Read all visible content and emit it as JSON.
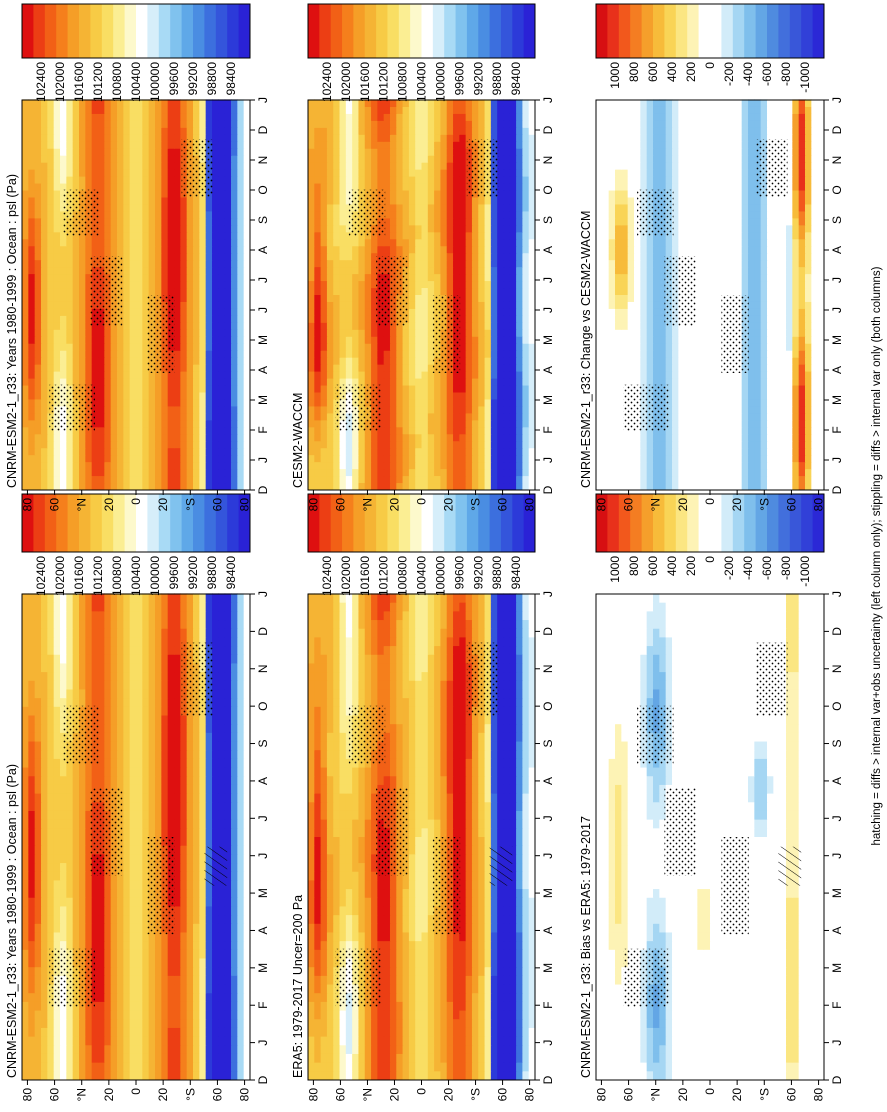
{
  "footer": "hatching = diffs > internal var+obs uncertainty (left column only); stippling = diffs > internal var only (both columns)",
  "colors": {
    "abs_scale": [
      "#DE1010",
      "#EC3E14",
      "#F26016",
      "#F57F1C",
      "#F59E27",
      "#F5B434",
      "#F7CB45",
      "#F9DE63",
      "#FBEE93",
      "#FDF9CC",
      "#FFFFFF",
      "#D6EEFA",
      "#A8DAF5",
      "#80C2EE",
      "#5FA8E8",
      "#4A8DE2",
      "#3C6FDE",
      "#3455DB",
      "#2C3AD9",
      "#2A22D6"
    ],
    "diff_scale": [
      "#D70F12",
      "#E8311B",
      "#F2581C",
      "#F47D22",
      "#F59F2B",
      "#F7BB3A",
      "#F9D456",
      "#FBE682",
      "#FDF3B5",
      "#FFFFFF",
      "#FFFFFF",
      "#D2ECF9",
      "#A5D6F3",
      "#7FBFEC",
      "#63A6E5",
      "#4F8BDF",
      "#426FDC",
      "#3957D9",
      "#3140D8",
      "#2B28D6"
    ]
  },
  "chart_data": [
    {
      "id": "cnrm_left",
      "type": "heatmap",
      "title": "CNRM-ESM2-1_r33: Years 1980-1999 : Ocean : psl (Pa)",
      "x_ticks": [
        "D",
        "J",
        "F",
        "M",
        "A",
        "M",
        "J",
        "J",
        "A",
        "S",
        "O",
        "N",
        "D",
        "J"
      ],
      "y_ticks": [
        "80",
        "60",
        "°N",
        "20",
        "0",
        "20",
        "°S",
        "60",
        "80"
      ],
      "colorbar_labels": [
        "102400",
        "102000",
        "101600",
        "101200",
        "100800",
        "100400",
        "100000",
        "99600",
        "99200",
        "98800",
        "98400"
      ],
      "hatching": true
    },
    {
      "id": "cnrm_right",
      "type": "heatmap",
      "title": "CNRM-ESM2-1_r33: Years 1980-1999 : Ocean : psl (Pa)",
      "x_ticks": [
        "D",
        "J",
        "F",
        "M",
        "A",
        "M",
        "J",
        "J",
        "A",
        "S",
        "O",
        "N",
        "D",
        "J"
      ],
      "y_ticks": [
        "80",
        "60",
        "°N",
        "20",
        "0",
        "20",
        "°S",
        "60",
        "80"
      ],
      "colorbar_labels": [
        "102400",
        "102000",
        "101600",
        "101200",
        "100800",
        "100400",
        "100000",
        "99600",
        "99200",
        "98800",
        "98400"
      ],
      "hatching": false
    },
    {
      "id": "era5",
      "type": "heatmap",
      "title": "ERA5: 1979-2017 Uncer=200 Pa",
      "x_ticks": [
        "D",
        "J",
        "F",
        "M",
        "A",
        "M",
        "J",
        "J",
        "A",
        "S",
        "O",
        "N",
        "D",
        "J"
      ],
      "y_ticks": [
        "80",
        "60",
        "°N",
        "20",
        "0",
        "20",
        "°S",
        "60",
        "80"
      ],
      "colorbar_labels": [
        "102400",
        "102000",
        "101600",
        "101200",
        "100800",
        "100400",
        "100000",
        "99600",
        "99200",
        "98800",
        "98400"
      ],
      "hatching": true
    },
    {
      "id": "cesm",
      "type": "heatmap",
      "title": "CESM2-WACCM",
      "x_ticks": [
        "D",
        "J",
        "F",
        "M",
        "A",
        "M",
        "J",
        "J",
        "A",
        "S",
        "O",
        "N",
        "D",
        "J"
      ],
      "y_ticks": [
        "80",
        "60",
        "°N",
        "20",
        "0",
        "20",
        "°S",
        "60",
        "80"
      ],
      "colorbar_labels": [
        "102400",
        "102000",
        "101600",
        "101200",
        "100800",
        "100400",
        "100000",
        "99600",
        "99200",
        "98800",
        "98400"
      ],
      "hatching": false
    },
    {
      "id": "bias",
      "type": "heatmap",
      "title": "CNRM-ESM2-1_r33: Bias vs ERA5: 1979-2017",
      "x_ticks": [
        "D",
        "J",
        "F",
        "M",
        "A",
        "M",
        "J",
        "J",
        "A",
        "S",
        "O",
        "N",
        "D",
        "J"
      ],
      "y_ticks": [
        "80",
        "60",
        "°N",
        "20",
        "0",
        "20",
        "°S",
        "60",
        "80"
      ],
      "colorbar_labels": [
        "1000",
        "800",
        "600",
        "400",
        "200",
        "0",
        "-200",
        "-400",
        "-600",
        "-800",
        "-1000"
      ],
      "hatching": true
    },
    {
      "id": "change",
      "type": "heatmap",
      "title": "CNRM-ESM2-1_r33: Change vs CESM2-WACCM",
      "x_ticks": [
        "D",
        "J",
        "F",
        "M",
        "A",
        "M",
        "J",
        "J",
        "A",
        "S",
        "O",
        "N",
        "D",
        "J"
      ],
      "y_ticks": [
        "80",
        "60",
        "°N",
        "20",
        "0",
        "20",
        "°S",
        "60",
        "80"
      ],
      "colorbar_labels": [
        "1000",
        "800",
        "600",
        "400",
        "200",
        "0",
        "-200",
        "-400",
        "-600",
        "-800",
        "-1000"
      ],
      "hatching": false
    }
  ]
}
